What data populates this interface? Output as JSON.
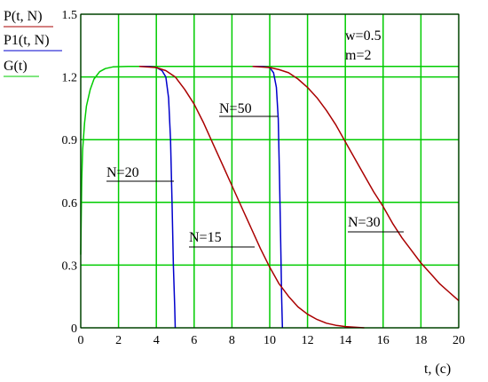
{
  "chart_data": {
    "type": "line",
    "title": "",
    "xlabel": "t, (c)",
    "ylabels": [
      "P(t, N)",
      "P1(t, N)",
      "G(t)"
    ],
    "xlim": [
      0,
      20
    ],
    "ylim": [
      0,
      1.5
    ],
    "x_ticks": [
      0,
      2,
      4,
      6,
      8,
      10,
      12,
      14,
      16,
      18,
      20
    ],
    "y_ticks": [
      0,
      0.3,
      0.6,
      0.9,
      1.2,
      1.5
    ],
    "y_tick_labels": [
      "0",
      "0.3",
      "0.6",
      "0.9",
      "1.2",
      "1.5"
    ],
    "grid": true,
    "grid_color": "#00cc00",
    "annotations": [
      "w=0.5",
      "m=2",
      "N=50",
      "N=20",
      "N=15",
      "N=30"
    ],
    "params": {
      "w": 0.5,
      "m": 2
    },
    "series": [
      {
        "color": "#00cc00",
        "points": [
          [
            0,
            0.35
          ],
          [
            0.05,
            0.7
          ],
          [
            0.1,
            0.85
          ],
          [
            0.2,
            0.98
          ],
          [
            0.3,
            1.06
          ],
          [
            0.5,
            1.14
          ],
          [
            0.7,
            1.19
          ],
          [
            1.0,
            1.225
          ],
          [
            1.3,
            1.24
          ],
          [
            1.7,
            1.248
          ],
          [
            2.5,
            1.25
          ],
          [
            20,
            1.25
          ]
        ]
      },
      {
        "color": "#0000cc",
        "points": [
          [
            3.1,
            1.25
          ],
          [
            3.6,
            1.25
          ],
          [
            4.0,
            1.245
          ],
          [
            4.3,
            1.23
          ],
          [
            4.5,
            1.2
          ],
          [
            4.65,
            1.1
          ],
          [
            4.75,
            0.9
          ],
          [
            4.83,
            0.6
          ],
          [
            4.9,
            0.3
          ],
          [
            4.97,
            0.1
          ],
          [
            5.0,
            0.0
          ]
        ]
      },
      {
        "color": "#0000cc",
        "points": [
          [
            9.1,
            1.25
          ],
          [
            9.6,
            1.25
          ],
          [
            10.0,
            1.245
          ],
          [
            10.2,
            1.22
          ],
          [
            10.35,
            1.15
          ],
          [
            10.45,
            1.0
          ],
          [
            10.52,
            0.7
          ],
          [
            10.58,
            0.4
          ],
          [
            10.63,
            0.15
          ],
          [
            10.67,
            0.0
          ]
        ]
      },
      {
        "color": "#aa0000",
        "points": [
          [
            3.1,
            1.25
          ],
          [
            4.0,
            1.245
          ],
          [
            4.5,
            1.23
          ],
          [
            5.0,
            1.2
          ],
          [
            5.5,
            1.14
          ],
          [
            6.0,
            1.07
          ],
          [
            6.5,
            0.98
          ],
          [
            7.0,
            0.88
          ],
          [
            7.5,
            0.78
          ],
          [
            8.0,
            0.68
          ],
          [
            8.5,
            0.58
          ],
          [
            9.0,
            0.48
          ],
          [
            9.5,
            0.38
          ],
          [
            10.0,
            0.29
          ],
          [
            10.5,
            0.21
          ],
          [
            11.0,
            0.15
          ],
          [
            11.5,
            0.1
          ],
          [
            12.0,
            0.065
          ],
          [
            12.5,
            0.04
          ],
          [
            13.0,
            0.022
          ],
          [
            13.5,
            0.012
          ],
          [
            14.0,
            0.006
          ],
          [
            15.0,
            0.0
          ]
        ]
      },
      {
        "color": "#aa0000",
        "points": [
          [
            9.1,
            1.25
          ],
          [
            10.0,
            1.245
          ],
          [
            10.5,
            1.235
          ],
          [
            11.0,
            1.22
          ],
          [
            11.5,
            1.19
          ],
          [
            12.0,
            1.15
          ],
          [
            12.5,
            1.1
          ],
          [
            13.0,
            1.04
          ],
          [
            13.5,
            0.97
          ],
          [
            14.0,
            0.89
          ],
          [
            14.5,
            0.81
          ],
          [
            15.0,
            0.73
          ],
          [
            15.5,
            0.65
          ],
          [
            16.0,
            0.58
          ],
          [
            16.5,
            0.5
          ],
          [
            17.0,
            0.43
          ],
          [
            17.5,
            0.37
          ],
          [
            18.0,
            0.31
          ],
          [
            18.5,
            0.26
          ],
          [
            19.0,
            0.21
          ],
          [
            19.5,
            0.17
          ],
          [
            20.0,
            0.13
          ]
        ]
      }
    ]
  }
}
